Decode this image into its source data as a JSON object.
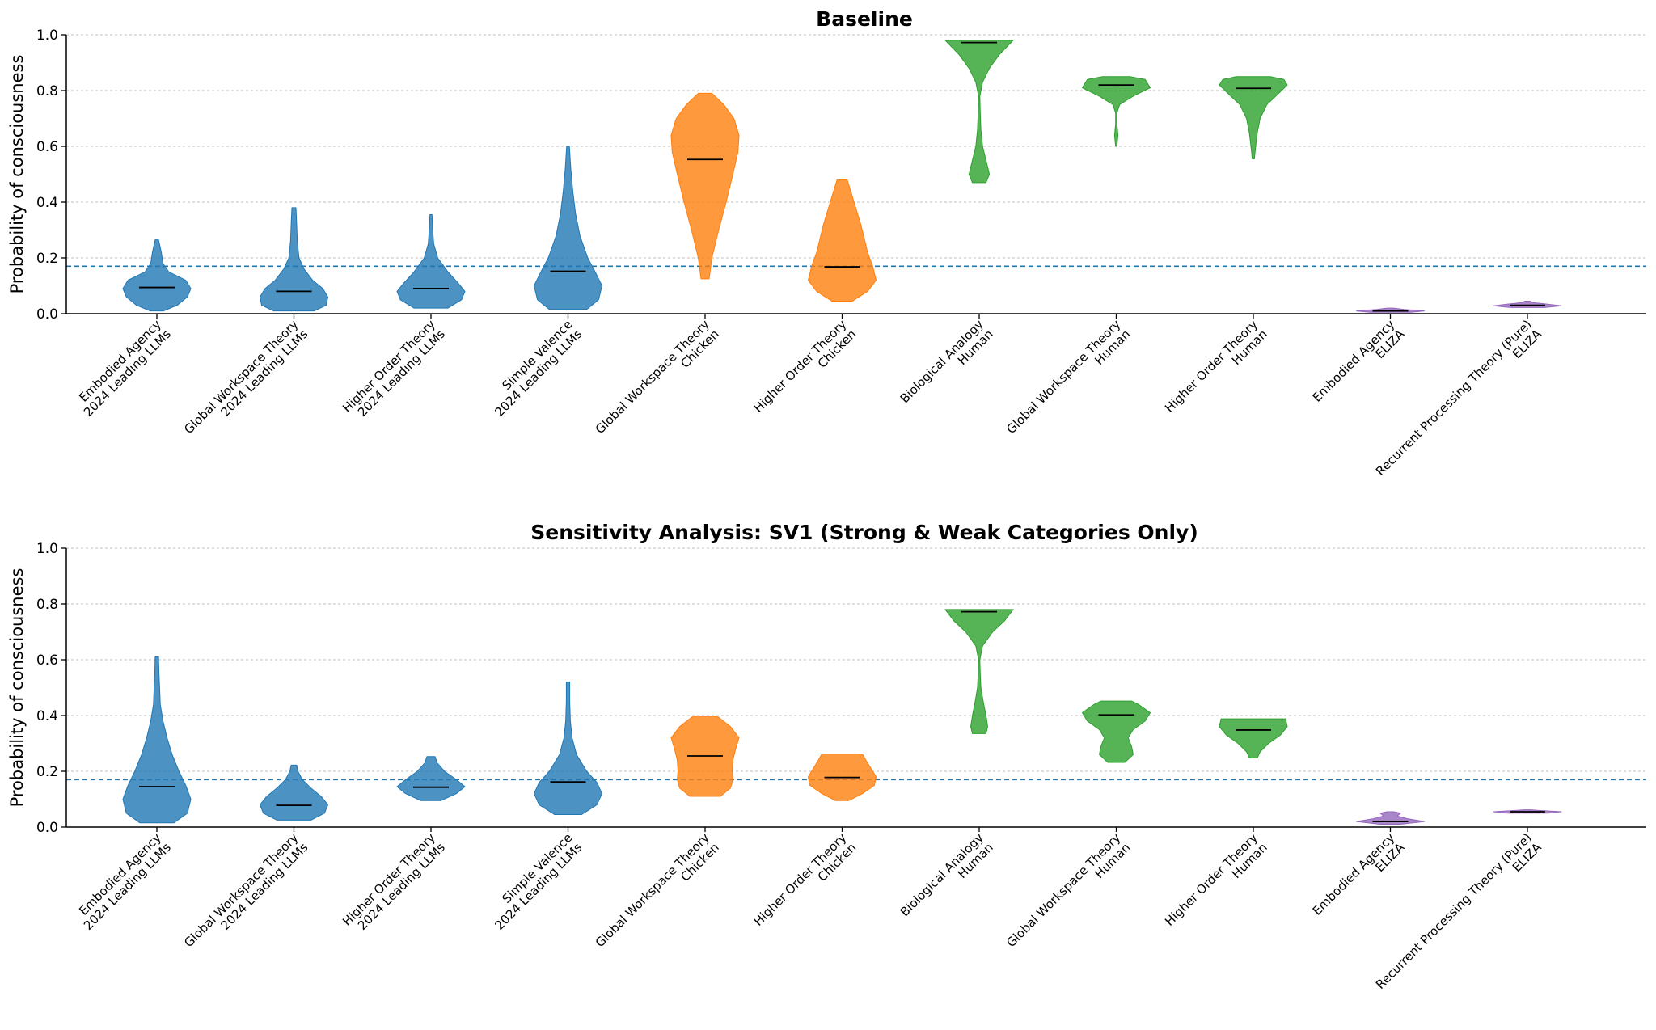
{
  "chart_data": [
    {
      "type": "violin",
      "title": "Baseline",
      "ylabel": "Probability of consciousness",
      "xlabel": "",
      "ylim": [
        0,
        1
      ],
      "yticks": [
        "0.0",
        "0.2",
        "0.4",
        "0.6",
        "0.8",
        "1.0"
      ],
      "grid": "horizontal dotted",
      "reference_line": {
        "y": 0.17,
        "style": "dashed",
        "color": "#1f77b4"
      },
      "categories": [
        {
          "theory": "Embodied Agency",
          "system": "2024 Leading LLMs",
          "color": "#1f77b4",
          "median": 0.094,
          "min": 0.01,
          "max": 0.265,
          "profile": [
            [
              0.01,
              0.2
            ],
            [
              0.03,
              0.6
            ],
            [
              0.06,
              0.9
            ],
            [
              0.09,
              1.0
            ],
            [
              0.12,
              0.85
            ],
            [
              0.15,
              0.35
            ],
            [
              0.18,
              0.18
            ],
            [
              0.22,
              0.13
            ],
            [
              0.265,
              0.05
            ]
          ]
        },
        {
          "theory": "Global Workspace Theory",
          "system": "2024 Leading LLMs",
          "color": "#1f77b4",
          "median": 0.08,
          "min": 0.01,
          "max": 0.38,
          "profile": [
            [
              0.01,
              0.6
            ],
            [
              0.03,
              0.95
            ],
            [
              0.06,
              1.0
            ],
            [
              0.09,
              0.85
            ],
            [
              0.12,
              0.55
            ],
            [
              0.16,
              0.3
            ],
            [
              0.2,
              0.15
            ],
            [
              0.26,
              0.1
            ],
            [
              0.32,
              0.08
            ],
            [
              0.38,
              0.06
            ]
          ]
        },
        {
          "theory": "Higher Order Theory",
          "system": "2024 Leading LLMs",
          "color": "#1f77b4",
          "median": 0.09,
          "min": 0.02,
          "max": 0.355,
          "profile": [
            [
              0.02,
              0.5
            ],
            [
              0.05,
              0.9
            ],
            [
              0.08,
              1.0
            ],
            [
              0.11,
              0.8
            ],
            [
              0.15,
              0.5
            ],
            [
              0.2,
              0.2
            ],
            [
              0.25,
              0.08
            ],
            [
              0.3,
              0.05
            ],
            [
              0.355,
              0.03
            ]
          ]
        },
        {
          "theory": "Simple Valence",
          "system": "2024 Leading LLMs",
          "color": "#1f77b4",
          "median": 0.152,
          "min": 0.015,
          "max": 0.6,
          "profile": [
            [
              0.015,
              0.55
            ],
            [
              0.05,
              0.9
            ],
            [
              0.1,
              1.0
            ],
            [
              0.15,
              0.8
            ],
            [
              0.2,
              0.58
            ],
            [
              0.28,
              0.35
            ],
            [
              0.36,
              0.22
            ],
            [
              0.44,
              0.14
            ],
            [
              0.52,
              0.08
            ],
            [
              0.6,
              0.04
            ]
          ]
        },
        {
          "theory": "Global Workspace Theory",
          "system": "Chicken",
          "color": "#ff7f0e",
          "median": 0.553,
          "min": 0.125,
          "max": 0.79,
          "profile": [
            [
              0.125,
              0.12
            ],
            [
              0.2,
              0.2
            ],
            [
              0.3,
              0.4
            ],
            [
              0.4,
              0.62
            ],
            [
              0.5,
              0.82
            ],
            [
              0.58,
              0.97
            ],
            [
              0.64,
              1.0
            ],
            [
              0.7,
              0.85
            ],
            [
              0.75,
              0.55
            ],
            [
              0.79,
              0.2
            ]
          ]
        },
        {
          "theory": "Higher Order Theory",
          "system": "Chicken",
          "color": "#ff7f0e",
          "median": 0.168,
          "min": 0.045,
          "max": 0.48,
          "profile": [
            [
              0.045,
              0.3
            ],
            [
              0.08,
              0.75
            ],
            [
              0.12,
              1.0
            ],
            [
              0.17,
              0.9
            ],
            [
              0.22,
              0.75
            ],
            [
              0.27,
              0.65
            ],
            [
              0.32,
              0.55
            ],
            [
              0.38,
              0.4
            ],
            [
              0.44,
              0.25
            ],
            [
              0.48,
              0.15
            ]
          ]
        },
        {
          "theory": "Biological Analogy",
          "system": "Human",
          "color": "#2ca02c",
          "median": 0.972,
          "min": 0.47,
          "max": 0.98,
          "profile": [
            [
              0.47,
              0.2
            ],
            [
              0.5,
              0.3
            ],
            [
              0.55,
              0.2
            ],
            [
              0.6,
              0.1
            ],
            [
              0.66,
              0.05
            ],
            [
              0.72,
              0.03
            ],
            [
              0.78,
              0.02
            ],
            [
              0.83,
              0.1
            ],
            [
              0.88,
              0.3
            ],
            [
              0.93,
              0.6
            ],
            [
              0.98,
              1.0
            ]
          ]
        },
        {
          "theory": "Global Workspace Theory",
          "system": "Human",
          "color": "#2ca02c",
          "median": 0.82,
          "min": 0.6,
          "max": 0.85,
          "profile": [
            [
              0.6,
              0.02
            ],
            [
              0.64,
              0.05
            ],
            [
              0.68,
              0.02
            ],
            [
              0.72,
              0.02
            ],
            [
              0.75,
              0.1
            ],
            [
              0.78,
              0.5
            ],
            [
              0.81,
              1.0
            ],
            [
              0.84,
              0.85
            ],
            [
              0.85,
              0.4
            ]
          ]
        },
        {
          "theory": "Higher Order Theory",
          "system": "Human",
          "color": "#2ca02c",
          "median": 0.808,
          "min": 0.555,
          "max": 0.85,
          "profile": [
            [
              0.555,
              0.03
            ],
            [
              0.6,
              0.07
            ],
            [
              0.65,
              0.12
            ],
            [
              0.7,
              0.2
            ],
            [
              0.75,
              0.4
            ],
            [
              0.79,
              0.75
            ],
            [
              0.82,
              1.0
            ],
            [
              0.84,
              0.9
            ],
            [
              0.85,
              0.5
            ]
          ]
        },
        {
          "theory": "Embodied Agency",
          "system": "ELIZA",
          "color": "#9467bd",
          "median": 0.01,
          "min": 0.005,
          "max": 0.02,
          "profile": [
            [
              0.005,
              0.6
            ],
            [
              0.01,
              1.0
            ],
            [
              0.015,
              0.4
            ],
            [
              0.02,
              0.1
            ]
          ]
        },
        {
          "theory": "Recurrent Processing Theory (Pure)",
          "system": "ELIZA",
          "color": "#9467bd",
          "median": 0.03,
          "min": 0.022,
          "max": 0.045,
          "profile": [
            [
              0.022,
              0.5
            ],
            [
              0.028,
              1.0
            ],
            [
              0.034,
              0.6
            ],
            [
              0.04,
              0.15
            ],
            [
              0.045,
              0.08
            ]
          ]
        }
      ]
    },
    {
      "type": "violin",
      "title": "Sensitivity Analysis: SV1 (Strong & Weak Categories Only)",
      "ylabel": "Probability of consciousness",
      "xlabel": "",
      "ylim": [
        0,
        1
      ],
      "yticks": [
        "0.0",
        "0.2",
        "0.4",
        "0.6",
        "0.8",
        "1.0"
      ],
      "grid": "horizontal dotted",
      "reference_line": {
        "y": 0.17,
        "style": "dashed",
        "color": "#1f77b4"
      },
      "categories": [
        {
          "theory": "Embodied Agency",
          "system": "2024 Leading LLMs",
          "color": "#1f77b4",
          "median": 0.145,
          "min": 0.015,
          "max": 0.61,
          "profile": [
            [
              0.015,
              0.5
            ],
            [
              0.05,
              0.9
            ],
            [
              0.1,
              1.0
            ],
            [
              0.15,
              0.85
            ],
            [
              0.2,
              0.65
            ],
            [
              0.26,
              0.45
            ],
            [
              0.32,
              0.3
            ],
            [
              0.38,
              0.18
            ],
            [
              0.44,
              0.1
            ],
            [
              0.5,
              0.08
            ],
            [
              0.56,
              0.06
            ],
            [
              0.61,
              0.05
            ]
          ]
        },
        {
          "theory": "Global Workspace Theory",
          "system": "2024 Leading LLMs",
          "color": "#1f77b4",
          "median": 0.078,
          "min": 0.025,
          "max": 0.222,
          "profile": [
            [
              0.025,
              0.5
            ],
            [
              0.05,
              0.9
            ],
            [
              0.08,
              1.0
            ],
            [
              0.11,
              0.8
            ],
            [
              0.14,
              0.5
            ],
            [
              0.17,
              0.25
            ],
            [
              0.2,
              0.12
            ],
            [
              0.222,
              0.08
            ]
          ]
        },
        {
          "theory": "Higher Order Theory",
          "system": "2024 Leading LLMs",
          "color": "#1f77b4",
          "median": 0.143,
          "min": 0.095,
          "max": 0.253,
          "profile": [
            [
              0.095,
              0.3
            ],
            [
              0.12,
              0.75
            ],
            [
              0.145,
              1.0
            ],
            [
              0.17,
              0.75
            ],
            [
              0.2,
              0.4
            ],
            [
              0.23,
              0.18
            ],
            [
              0.253,
              0.12
            ]
          ]
        },
        {
          "theory": "Simple Valence",
          "system": "2024 Leading LLMs",
          "color": "#1f77b4",
          "median": 0.162,
          "min": 0.045,
          "max": 0.52,
          "profile": [
            [
              0.045,
              0.4
            ],
            [
              0.08,
              0.85
            ],
            [
              0.12,
              1.0
            ],
            [
              0.16,
              0.85
            ],
            [
              0.2,
              0.55
            ],
            [
              0.26,
              0.25
            ],
            [
              0.32,
              0.12
            ],
            [
              0.38,
              0.07
            ],
            [
              0.45,
              0.05
            ],
            [
              0.52,
              0.05
            ]
          ]
        },
        {
          "theory": "Global Workspace Theory",
          "system": "Chicken",
          "color": "#ff7f0e",
          "median": 0.255,
          "min": 0.11,
          "max": 0.398,
          "profile": [
            [
              0.11,
              0.45
            ],
            [
              0.14,
              0.75
            ],
            [
              0.17,
              0.82
            ],
            [
              0.2,
              0.8
            ],
            [
              0.24,
              0.82
            ],
            [
              0.28,
              0.9
            ],
            [
              0.32,
              1.0
            ],
            [
              0.36,
              0.75
            ],
            [
              0.398,
              0.35
            ]
          ]
        },
        {
          "theory": "Higher Order Theory",
          "system": "Chicken",
          "color": "#ff7f0e",
          "median": 0.178,
          "min": 0.095,
          "max": 0.262,
          "profile": [
            [
              0.095,
              0.2
            ],
            [
              0.12,
              0.6
            ],
            [
              0.15,
              0.95
            ],
            [
              0.18,
              1.0
            ],
            [
              0.21,
              0.85
            ],
            [
              0.24,
              0.7
            ],
            [
              0.262,
              0.6
            ]
          ]
        },
        {
          "theory": "Biological Analogy",
          "system": "Human",
          "color": "#2ca02c",
          "median": 0.772,
          "min": 0.335,
          "max": 0.78,
          "profile": [
            [
              0.335,
              0.2
            ],
            [
              0.36,
              0.25
            ],
            [
              0.4,
              0.2
            ],
            [
              0.45,
              0.12
            ],
            [
              0.5,
              0.05
            ],
            [
              0.55,
              0.03
            ],
            [
              0.6,
              0.02
            ],
            [
              0.65,
              0.1
            ],
            [
              0.7,
              0.4
            ],
            [
              0.74,
              0.75
            ],
            [
              0.78,
              1.0
            ]
          ]
        },
        {
          "theory": "Global Workspace Theory",
          "system": "Human",
          "color": "#2ca02c",
          "median": 0.402,
          "min": 0.232,
          "max": 0.452,
          "profile": [
            [
              0.232,
              0.25
            ],
            [
              0.26,
              0.5
            ],
            [
              0.29,
              0.45
            ],
            [
              0.32,
              0.35
            ],
            [
              0.35,
              0.5
            ],
            [
              0.38,
              0.85
            ],
            [
              0.41,
              1.0
            ],
            [
              0.44,
              0.65
            ],
            [
              0.452,
              0.45
            ]
          ]
        },
        {
          "theory": "Higher Order Theory",
          "system": "Human",
          "color": "#2ca02c",
          "median": 0.348,
          "min": 0.248,
          "max": 0.388,
          "profile": [
            [
              0.248,
              0.12
            ],
            [
              0.27,
              0.2
            ],
            [
              0.3,
              0.45
            ],
            [
              0.33,
              0.8
            ],
            [
              0.36,
              1.0
            ],
            [
              0.388,
              0.95
            ]
          ]
        },
        {
          "theory": "Embodied Agency",
          "system": "ELIZA",
          "color": "#9467bd",
          "median": 0.02,
          "min": 0.01,
          "max": 0.055,
          "profile": [
            [
              0.01,
              0.3
            ],
            [
              0.02,
              1.0
            ],
            [
              0.03,
              0.5
            ],
            [
              0.04,
              0.2
            ],
            [
              0.05,
              0.3
            ],
            [
              0.055,
              0.1
            ]
          ]
        },
        {
          "theory": "Recurrent Processing Theory (Pure)",
          "system": "ELIZA",
          "color": "#9467bd",
          "median": 0.055,
          "min": 0.05,
          "max": 0.062,
          "profile": [
            [
              0.05,
              0.6
            ],
            [
              0.055,
              1.0
            ],
            [
              0.06,
              0.3
            ],
            [
              0.062,
              0.1
            ]
          ]
        }
      ]
    }
  ]
}
